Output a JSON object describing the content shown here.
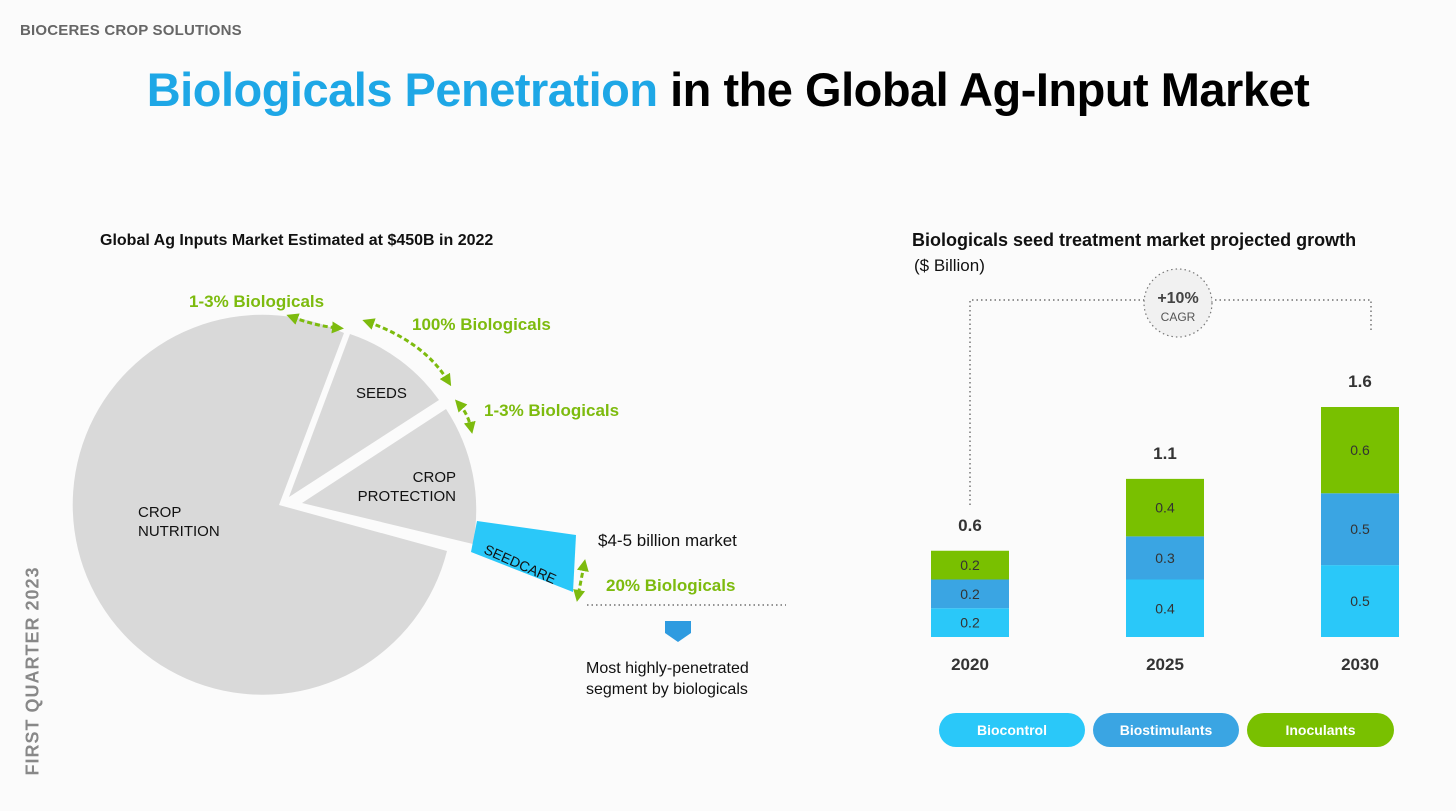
{
  "header": {
    "company": "BIOCERES CROP SOLUTIONS",
    "title_highlight": "Biologicals Penetration",
    "title_rest": " in the Global Ag-Input Market",
    "side_label": "FIRST QUARTER 2023"
  },
  "colors": {
    "accent_blue": "#1ea7e6",
    "green": "#7dbb0e",
    "biocontrol": "#2ac8f9",
    "biostimulants": "#3aa5e3",
    "inoculants": "#79c000",
    "pie_gray": "#d9d9d9",
    "seedcare": "#2ac8f9"
  },
  "pie": {
    "title": "Global Ag Inputs Market Estimated at $450B in 2022",
    "labels": {
      "nutrition": "CROP\nNUTRITION",
      "seeds": "SEEDS",
      "protection": "CROP\nPROTECTION",
      "seedcare": "SEEDCARE"
    },
    "annotations": {
      "nutrition_bio": "1-3% Biologicals",
      "seeds_bio": "100% Biologicals",
      "protection_bio": "1-3% Biologicals",
      "seedcare_market": "$4-5 billion market",
      "seedcare_bio": "20% Biologicals",
      "seedcare_note": "Most highly-penetrated\nsegment by biologicals"
    }
  },
  "chart_data": {
    "type": "bar",
    "title": "Biologicals seed treatment market projected growth",
    "ylabel": "($ Billion)",
    "categories": [
      "2020",
      "2025",
      "2030"
    ],
    "series": [
      {
        "name": "Biocontrol",
        "values": [
          0.2,
          0.4,
          0.5
        ]
      },
      {
        "name": "Biostimulants",
        "values": [
          0.2,
          0.3,
          0.5
        ]
      },
      {
        "name": "Inoculants",
        "values": [
          0.2,
          0.4,
          0.6
        ]
      }
    ],
    "totals": [
      0.6,
      1.1,
      1.6
    ],
    "cagr_value": "+10%",
    "cagr_label": "CAGR"
  }
}
